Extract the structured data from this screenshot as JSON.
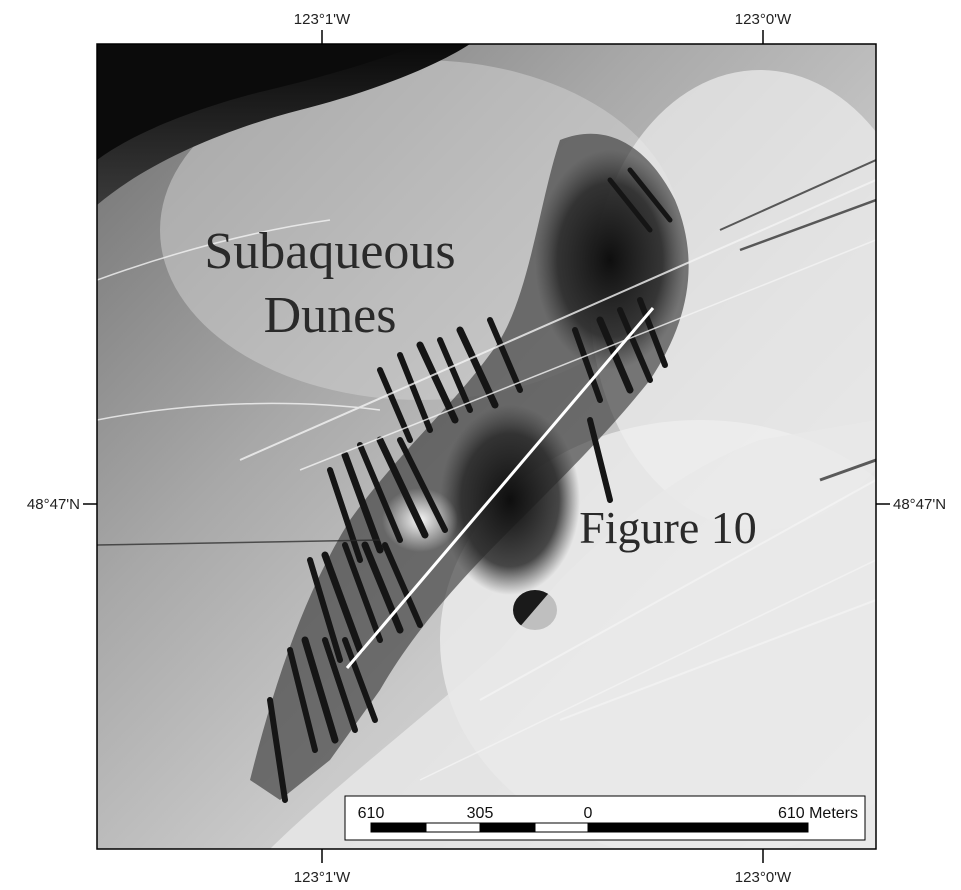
{
  "coordinates": {
    "top_left_lon": "123°1'W",
    "top_right_lon": "123°0'W",
    "bottom_left_lon": "123°1'W",
    "bottom_right_lon": "123°0'W",
    "left_lat": "48°47'N",
    "right_lat": "48°47'N"
  },
  "annotations": {
    "dunes_line1": "Subaqueous",
    "dunes_line2": "Dunes",
    "figure_ref": "Figure 10"
  },
  "scale_bar": {
    "label_left": "610",
    "label_mid": "305",
    "label_zero": "0",
    "label_right": "610 Meters"
  },
  "colors": {
    "deep_water": "#111111",
    "seafloor_mid": "#9a9a9a",
    "seafloor_light": "#e8e8e8",
    "profile_line": "#ffffff"
  }
}
